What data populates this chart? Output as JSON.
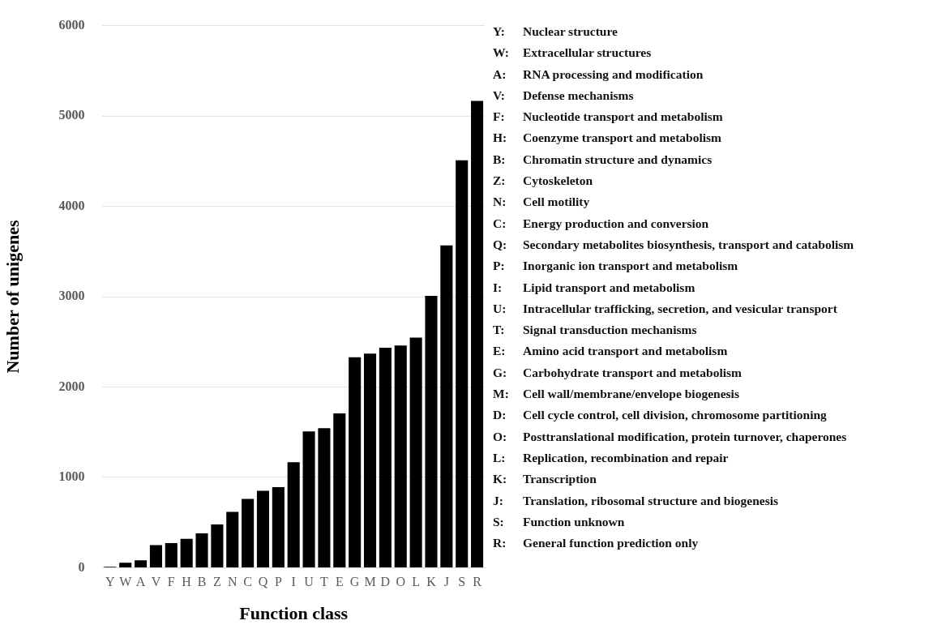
{
  "chart_data": {
    "type": "bar",
    "xlabel": "Function class",
    "ylabel": "Number of unigenes",
    "categories": [
      "Y",
      "W",
      "A",
      "V",
      "F",
      "H",
      "B",
      "Z",
      "N",
      "C",
      "Q",
      "P",
      "I",
      "U",
      "T",
      "E",
      "G",
      "M",
      "D",
      "O",
      "L",
      "K",
      "J",
      "S",
      "R"
    ],
    "values": [
      10,
      56,
      82,
      251,
      272,
      320,
      380,
      480,
      618,
      761,
      852,
      891,
      1167,
      1509,
      1544,
      1708,
      2330,
      2369,
      2434,
      2460,
      2547,
      3009,
      3567,
      4509,
      5166
    ],
    "color": "#000000",
    "ylim": [
      0,
      6000
    ],
    "yticks": [
      0,
      1000,
      2000,
      3000,
      4000,
      5000,
      6000
    ],
    "grid": "y",
    "annotations": [
      "Y:\tNuclear structure",
      "W:\tExtracellular structures",
      "A:\tRNA processing and modification",
      "V:\tDefense mechanisms",
      "F:\tNucleotide transport and metabolism",
      "H:\tCoenzyme transport and metabolism",
      "B:\tChromatin structure and dynamics",
      "Z:\tCytoskeleton",
      "N:\tCell motility",
      "C:\tEnergy production and conversion",
      "Q:\tSecondary metabolites biosynthesis, transport and catabolism",
      "P:\tInorganic ion transport and metabolism",
      "I:\tLipid transport and metabolism",
      "U:\tIntracellular trafficking, secretion, and vesicular transport",
      "T:\tSignal transduction mechanisms",
      "E:\tAmino acid transport and metabolism",
      "G:\tCarbohydrate transport and metabolism",
      "M:\tCell wall/membrane/envelope biogenesis",
      "D:\tCell cycle control, cell division, chromosome partitioning",
      "O:\tPosttranslational modification, protein turnover, chaperones",
      "L:\tReplication, recombination and repair",
      "K:\tTranscription",
      "J:\tTranslation, ribosomal structure and biogenesis",
      "S:\tFunction unknown",
      "R:\tGeneral function prediction only"
    ]
  }
}
